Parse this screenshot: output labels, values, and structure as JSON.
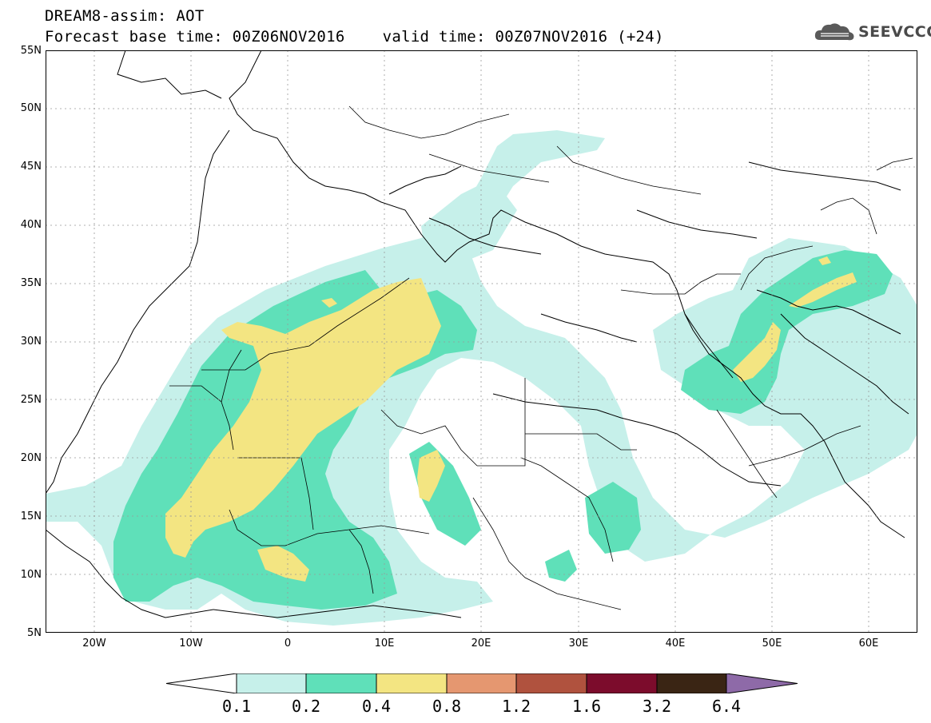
{
  "header": {
    "line1": "DREAM8-assim: AOT",
    "line2": "Forecast base time: 00Z06NOV2016    valid time: 00Z07NOV2016 (+24)"
  },
  "logo": {
    "text": "SEEVCCC",
    "icon": "cloud-logo-icon"
  },
  "map": {
    "variable": "AOT",
    "lon_range": [
      -25,
      65
    ],
    "lat_range": [
      5,
      55
    ],
    "lat_labels": [
      "55N",
      "50N",
      "45N",
      "40N",
      "35N",
      "30N",
      "25N",
      "20N",
      "15N",
      "10N",
      "5N"
    ],
    "lon_labels": [
      "20W",
      "10W",
      "0",
      "10E",
      "20E",
      "30E",
      "40E",
      "50E",
      "60E"
    ],
    "gridlines": "dotted"
  },
  "colorbar": {
    "labels": [
      "0.1",
      "0.2",
      "0.4",
      "0.8",
      "1.2",
      "1.6",
      "3.2",
      "6.4"
    ],
    "colors": [
      "#ffffff",
      "#c6f0ea",
      "#5fe0b9",
      "#f3e582",
      "#e59770",
      "#b0523e",
      "#7c0c2c",
      "#3a2514",
      "#8e6aa8"
    ]
  }
}
